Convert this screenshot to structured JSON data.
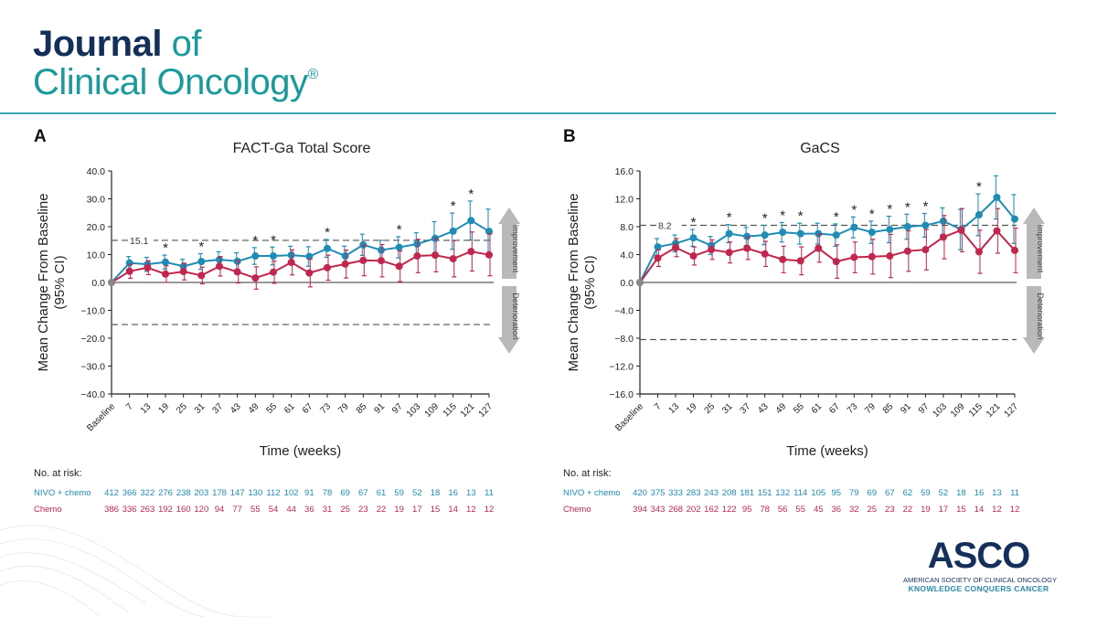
{
  "header": {
    "journal_word": "Journal",
    "of_word": "of",
    "journal_line2": "Clinical Oncology",
    "registered_mark": "®"
  },
  "footer": {
    "logo_text": "ASCO",
    "society_name": "AMERICAN SOCIETY OF CLINICAL ONCOLOGY",
    "tagline": "KNOWLEDGE CONQUERS CANCER"
  },
  "colors": {
    "nivo": "#1e8cb4",
    "chemo": "#c1274e",
    "accent": "#1a9a9a",
    "navy": "#14305a"
  },
  "chart_data": [
    {
      "panel": "A",
      "type": "line",
      "title": "FACT-Ga Total Score",
      "xlabel": "Time (weeks)",
      "ylabel_line1": "Mean Change From Baseline",
      "ylabel_line2": "(95% CI)",
      "ylim": [
        -40,
        40
      ],
      "yticks": [
        40,
        30,
        20,
        10,
        0,
        -10,
        -20,
        -30,
        -40
      ],
      "ytick_labels": [
        "40.0",
        "30.0",
        "20.0",
        "10.0",
        "0.0",
        "−10.0",
        "−20.0",
        "−30.0",
        "−40.0"
      ],
      "categories": [
        "Baseline",
        "7",
        "13",
        "19",
        "25",
        "31",
        "37",
        "43",
        "49",
        "55",
        "61",
        "67",
        "73",
        "79",
        "85",
        "91",
        "97",
        "103",
        "109",
        "115",
        "121",
        "127"
      ],
      "reference_lines": [
        15.1,
        -15.1
      ],
      "reference_label": "15.1",
      "significant_marker": "*",
      "significant_at": [
        "19",
        "31",
        "49",
        "55",
        "73",
        "97",
        "115",
        "121"
      ],
      "arrow_up_label": "Improvement",
      "arrow_down_label": "Deterioration",
      "grid": false,
      "series": [
        {
          "name": "NIVO + chemo",
          "color": "#1e8cb4",
          "values": [
            0,
            7.0,
            6.5,
            7.3,
            5.8,
            7.5,
            8.2,
            7.6,
            9.5,
            9.5,
            9.8,
            9.3,
            12.2,
            9.5,
            13.5,
            11.6,
            12.6,
            13.8,
            15.8,
            18.4,
            22.2,
            18.3
          ],
          "ci_half_width": [
            0,
            2.3,
            2.5,
            2.5,
            2.5,
            2.8,
            2.8,
            3.0,
            3.0,
            3.2,
            3.2,
            3.5,
            3.2,
            3.5,
            3.8,
            3.5,
            3.8,
            4.0,
            6.0,
            6.5,
            7.0,
            8.0
          ]
        },
        {
          "name": "Chemo",
          "color": "#c1274e",
          "values": [
            0,
            4.0,
            5.3,
            3.0,
            3.9,
            2.5,
            5.8,
            3.8,
            1.6,
            3.7,
            7.2,
            3.4,
            5.3,
            6.6,
            7.9,
            7.8,
            5.8,
            9.5,
            9.8,
            8.5,
            11.1,
            9.9
          ],
          "ci_half_width": [
            0,
            2.5,
            2.5,
            3.0,
            3.0,
            3.0,
            3.5,
            4.0,
            4.0,
            4.0,
            4.5,
            5.0,
            4.5,
            5.0,
            5.5,
            5.8,
            5.5,
            6.0,
            6.0,
            6.5,
            7.0,
            7.5
          ]
        }
      ],
      "at_risk": {
        "label": "No. at risk:",
        "rows": [
          {
            "name": "NIVO + chemo",
            "color": "#1e8cb4",
            "values": [
              "412",
              "366",
              "322",
              "276",
              "238",
              "203",
              "178",
              "147",
              "130",
              "112",
              "102",
              "91",
              "78",
              "69",
              "67",
              "61",
              "59",
              "52",
              "18",
              "16",
              "13",
              "11"
            ]
          },
          {
            "name": "Chemo",
            "color": "#c1274e",
            "values": [
              "386",
              "336",
              "263",
              "192",
              "160",
              "120",
              "94",
              "77",
              "55",
              "54",
              "44",
              "36",
              "31",
              "25",
              "23",
              "22",
              "19",
              "17",
              "15",
              "14",
              "12",
              "12"
            ]
          }
        ]
      }
    },
    {
      "panel": "B",
      "type": "line",
      "title": "GaCS",
      "xlabel": "Time (weeks)",
      "ylabel_line1": "Mean Change From Baseline",
      "ylabel_line2": "(95% CI)",
      "ylim": [
        -16,
        16
      ],
      "yticks": [
        16,
        12,
        8,
        4,
        0,
        -4,
        -8,
        -12,
        -16
      ],
      "ytick_labels": [
        "16.0",
        "12.0",
        "8.0",
        "4.0",
        "0.0",
        "−4.0",
        "−8.0",
        "−12.0",
        "−16.0"
      ],
      "categories": [
        "Baseline",
        "7",
        "13",
        "19",
        "25",
        "31",
        "37",
        "43",
        "49",
        "55",
        "61",
        "67",
        "73",
        "79",
        "85",
        "91",
        "97",
        "103",
        "109",
        "115",
        "121",
        "127"
      ],
      "reference_lines": [
        8.2,
        -8.2
      ],
      "reference_label": "8.2",
      "significant_marker": "*",
      "significant_at": [
        "19",
        "31",
        "43",
        "49",
        "55",
        "67",
        "73",
        "79",
        "85",
        "91",
        "97",
        "115"
      ],
      "arrow_up_label": "Improvement",
      "arrow_down_label": "Deterioration",
      "grid": false,
      "series": [
        {
          "name": "NIVO + chemo",
          "color": "#1e8cb4",
          "values": [
            0,
            5.1,
            5.6,
            6.4,
            5.3,
            7.0,
            6.6,
            6.8,
            7.2,
            7.0,
            7.0,
            6.8,
            7.9,
            7.2,
            7.6,
            8.0,
            8.2,
            8.8,
            7.6,
            9.7,
            12.2,
            9.1
          ],
          "ci_half_width": [
            0,
            1.2,
            1.2,
            1.2,
            1.3,
            1.3,
            1.3,
            1.4,
            1.4,
            1.5,
            1.5,
            1.6,
            1.5,
            1.6,
            1.9,
            1.8,
            1.7,
            1.9,
            2.9,
            3.0,
            3.1,
            3.5
          ]
        },
        {
          "name": "Chemo",
          "color": "#c1274e",
          "values": [
            0,
            3.5,
            5.0,
            3.8,
            4.7,
            4.3,
            4.9,
            4.1,
            3.3,
            3.1,
            4.9,
            3.0,
            3.6,
            3.7,
            3.8,
            4.5,
            4.7,
            6.5,
            7.5,
            4.4,
            7.4,
            4.6
          ],
          "ci_half_width": [
            0,
            1.2,
            1.3,
            1.3,
            1.4,
            1.5,
            1.6,
            1.8,
            1.9,
            2.0,
            2.0,
            2.4,
            2.2,
            2.5,
            3.1,
            2.9,
            2.9,
            3.1,
            3.1,
            3.1,
            3.2,
            3.2
          ]
        }
      ],
      "at_risk": {
        "label": "No. at risk:",
        "rows": [
          {
            "name": "NIVO + chemo",
            "color": "#1e8cb4",
            "values": [
              "420",
              "375",
              "333",
              "283",
              "243",
              "208",
              "181",
              "151",
              "132",
              "114",
              "105",
              "95",
              "79",
              "69",
              "67",
              "62",
              "59",
              "52",
              "18",
              "16",
              "13",
              "11"
            ]
          },
          {
            "name": "Chemo",
            "color": "#c1274e",
            "values": [
              "394",
              "343",
              "268",
              "202",
              "162",
              "122",
              "95",
              "78",
              "56",
              "55",
              "45",
              "36",
              "32",
              "25",
              "23",
              "22",
              "19",
              "17",
              "15",
              "14",
              "12",
              "12"
            ]
          }
        ]
      }
    }
  ]
}
